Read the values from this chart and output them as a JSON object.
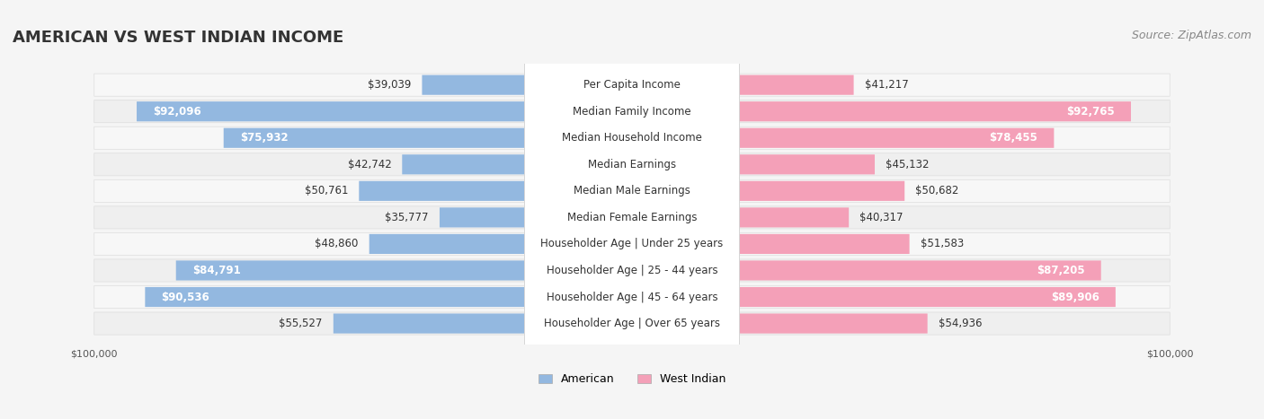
{
  "title": "AMERICAN VS WEST INDIAN INCOME",
  "source": "Source: ZipAtlas.com",
  "categories": [
    "Per Capita Income",
    "Median Family Income",
    "Median Household Income",
    "Median Earnings",
    "Median Male Earnings",
    "Median Female Earnings",
    "Householder Age | Under 25 years",
    "Householder Age | 25 - 44 years",
    "Householder Age | 45 - 64 years",
    "Householder Age | Over 65 years"
  ],
  "american_values": [
    39039,
    92096,
    75932,
    42742,
    50761,
    35777,
    48860,
    84791,
    90536,
    55527
  ],
  "west_indian_values": [
    41217,
    92765,
    78455,
    45132,
    50682,
    40317,
    51583,
    87205,
    89906,
    54936
  ],
  "max_value": 100000,
  "american_color": "#93b8e0",
  "american_color_dark": "#6b9fd4",
  "west_indian_color": "#f4a0b8",
  "west_indian_color_dark": "#e8729a",
  "background_color": "#f5f5f5",
  "row_bg_light": "#f0f0f0",
  "row_bg_dark": "#e8e8e8",
  "label_bg": "#ffffff",
  "title_fontsize": 13,
  "source_fontsize": 9,
  "value_fontsize": 8.5,
  "label_fontsize": 8.5,
  "axis_label_fontsize": 8,
  "legend_fontsize": 9
}
